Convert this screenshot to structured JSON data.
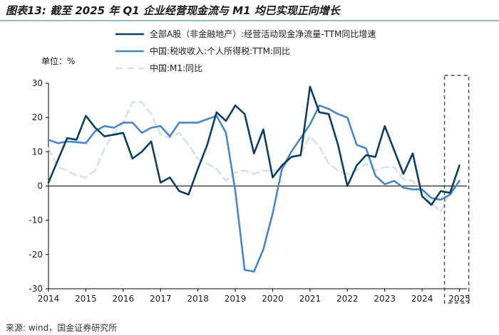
{
  "header": {
    "title": "图表13: 截至 2025 年 Q1 企业经营现金流与 M1 均已实现正向增长",
    "source": "来源: wind，国金证券研究所"
  },
  "colors": {
    "series1": "#0d3e5e",
    "series2": "#4a86c5",
    "series3": "#d4e1ef",
    "axis": "#000000",
    "highlight_box": "#2a4a6b"
  },
  "chart_data": {
    "type": "line",
    "title": "",
    "unit_label": "单位：%",
    "xlabel": "",
    "ylabel": "",
    "xlim": [
      2014,
      2025.2
    ],
    "ylim": [
      -30,
      30
    ],
    "yticks": [
      30,
      20,
      10,
      0,
      -10,
      -20,
      -30
    ],
    "xticks": [
      "2014",
      "2015",
      "2016",
      "2017",
      "2018",
      "2019",
      "2020",
      "2021",
      "2022",
      "2023",
      "2024",
      "2025"
    ],
    "legend_position": "top",
    "highlight_range": [
      2024.6,
      2025.25
    ],
    "series": [
      {
        "name": "全部A股（非金融地产）:经营活动现金净流量-TTM同比增速",
        "style": "solid-dark",
        "x": [
          2014.0,
          2014.25,
          2014.5,
          2014.75,
          2015.0,
          2015.25,
          2015.5,
          2015.75,
          2016.0,
          2016.25,
          2016.5,
          2016.75,
          2017.0,
          2017.25,
          2017.5,
          2017.75,
          2018.0,
          2018.25,
          2018.5,
          2018.75,
          2019.0,
          2019.25,
          2019.5,
          2019.75,
          2020.0,
          2020.25,
          2020.5,
          2020.75,
          2021.0,
          2021.25,
          2021.5,
          2021.75,
          2022.0,
          2022.25,
          2022.5,
          2022.75,
          2023.0,
          2023.25,
          2023.5,
          2023.75,
          2024.0,
          2024.25,
          2024.5,
          2024.75,
          2025.0
        ],
        "values": [
          1.0,
          7.5,
          14.0,
          13.5,
          20.5,
          17.0,
          14.5,
          15.0,
          15.5,
          8.0,
          10.0,
          13.0,
          1.0,
          2.5,
          -1.5,
          -2.5,
          5.0,
          12.0,
          21.5,
          19.0,
          23.5,
          21.0,
          9.5,
          16.5,
          2.5,
          6.0,
          8.5,
          9.0,
          29.0,
          21.5,
          21.0,
          12.0,
          0.0,
          6.0,
          9.0,
          8.5,
          17.5,
          10.5,
          3.5,
          9.5,
          -3.0,
          -5.5,
          -1.5,
          -2.0,
          6.0
        ]
      },
      {
        "name": "中国:税收收入:个人所得税:TTM:同比",
        "style": "solid-mid",
        "x": [
          2014.0,
          2014.25,
          2014.5,
          2014.75,
          2015.0,
          2015.25,
          2015.5,
          2015.75,
          2016.0,
          2016.25,
          2016.5,
          2016.75,
          2017.0,
          2017.25,
          2017.5,
          2017.75,
          2018.0,
          2018.25,
          2018.5,
          2018.75,
          2019.0,
          2019.25,
          2019.5,
          2019.75,
          2020.0,
          2020.25,
          2020.5,
          2020.75,
          2021.0,
          2021.25,
          2021.5,
          2021.75,
          2022.0,
          2022.25,
          2022.5,
          2022.75,
          2023.0,
          2023.25,
          2023.5,
          2023.75,
          2024.0,
          2024.25,
          2024.5,
          2024.75,
          2025.0
        ],
        "values": [
          13.5,
          12.5,
          13.0,
          12.8,
          12.5,
          16.0,
          17.5,
          17.0,
          18.5,
          18.5,
          15.5,
          17.0,
          17.5,
          14.5,
          18.5,
          18.5,
          18.5,
          19.5,
          20.5,
          15.5,
          -1.5,
          -24.5,
          -25.0,
          -18.5,
          -8.0,
          5.0,
          10.0,
          14.0,
          18.0,
          23.5,
          22.5,
          21.0,
          20.0,
          12.0,
          11.0,
          3.0,
          0.5,
          1.5,
          -0.5,
          -1.0,
          -1.0,
          -3.5,
          -4.0,
          -2.5,
          1.5
        ]
      },
      {
        "name": "中国:M1:同比",
        "style": "dashed-light",
        "x": [
          2014.0,
          2014.25,
          2014.5,
          2014.75,
          2015.0,
          2015.25,
          2015.5,
          2015.75,
          2016.0,
          2016.25,
          2016.5,
          2016.75,
          2017.0,
          2017.25,
          2017.5,
          2017.75,
          2018.0,
          2018.25,
          2018.5,
          2018.75,
          2019.0,
          2019.25,
          2019.5,
          2019.75,
          2020.0,
          2020.25,
          2020.5,
          2020.75,
          2021.0,
          2021.25,
          2021.5,
          2021.75,
          2022.0,
          2022.25,
          2022.5,
          2022.75,
          2023.0,
          2023.25,
          2023.5,
          2023.75,
          2024.0,
          2024.25,
          2024.5,
          2024.75,
          2025.0
        ],
        "values": [
          11.0,
          5.5,
          4.5,
          3.0,
          2.5,
          4.5,
          11.0,
          15.5,
          18.5,
          24.5,
          24.5,
          21.0,
          15.0,
          14.0,
          15.5,
          12.0,
          8.0,
          6.5,
          5.0,
          1.5,
          4.0,
          4.5,
          3.5,
          4.5,
          4.5,
          4.5,
          8.5,
          9.5,
          14.5,
          11.5,
          6.5,
          4.5,
          3.5,
          4.5,
          6.5,
          4.5,
          5.5,
          5.5,
          2.0,
          1.5,
          -1.5,
          -5.0,
          -7.5,
          -1.5,
          0.5
        ]
      }
    ]
  }
}
